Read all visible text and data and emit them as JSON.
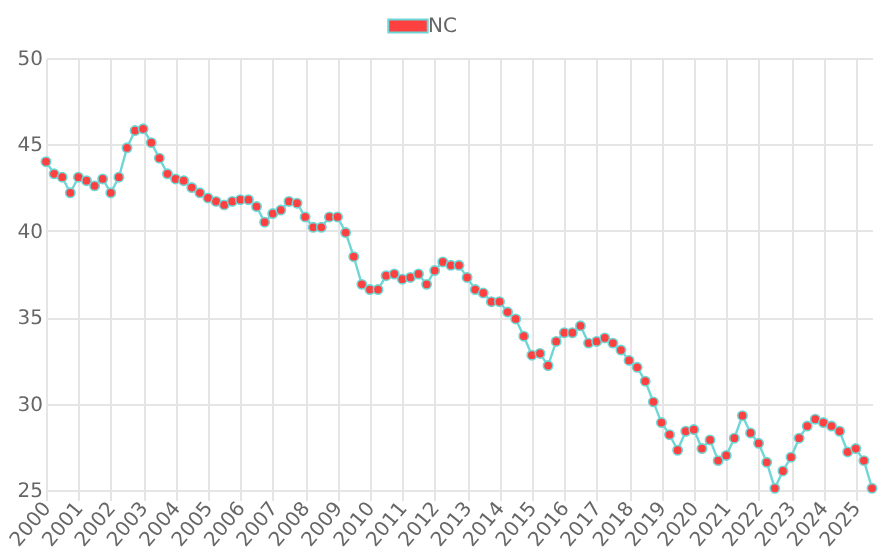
{
  "chart_data": {
    "type": "line",
    "categories": [
      "2000",
      null,
      null,
      null,
      "2001",
      null,
      null,
      null,
      "2002",
      null,
      null,
      null,
      "2003",
      null,
      null,
      null,
      "2004",
      null,
      null,
      null,
      "2005",
      null,
      null,
      null,
      "2006",
      null,
      null,
      null,
      "2007",
      null,
      null,
      null,
      "2008",
      null,
      null,
      null,
      "2009",
      null,
      null,
      null,
      "2010",
      null,
      null,
      null,
      "2011",
      null,
      null,
      null,
      "2012",
      null,
      null,
      null,
      "2013",
      null,
      null,
      null,
      "2014",
      null,
      null,
      null,
      "2015",
      null,
      null,
      null,
      "2016",
      null,
      null,
      null,
      "2017",
      null,
      null,
      null,
      "2018",
      null,
      null,
      null,
      "2019",
      null,
      null,
      null,
      "2020",
      null,
      null,
      null,
      "2021",
      null,
      null,
      null,
      "2022",
      null,
      null,
      null,
      "2023",
      null,
      null,
      null,
      "2024",
      null,
      null,
      null,
      "2025",
      null,
      null
    ],
    "series": [
      {
        "name": "NC",
        "color": "#ff4040",
        "values": [
          44.0,
          43.3,
          43.1,
          42.2,
          43.1,
          42.9,
          42.6,
          43.0,
          42.2,
          43.1,
          44.8,
          45.8,
          45.9,
          45.1,
          44.2,
          43.3,
          43.0,
          42.9,
          42.5,
          42.2,
          41.9,
          41.7,
          41.5,
          41.7,
          41.8,
          41.8,
          41.4,
          40.5,
          41.0,
          41.2,
          41.7,
          41.6,
          40.8,
          40.2,
          40.2,
          40.8,
          40.8,
          39.9,
          38.5,
          36.9,
          36.6,
          36.6,
          37.4,
          37.5,
          37.2,
          37.3,
          37.5,
          36.9,
          37.7,
          38.2,
          38.0,
          38.0,
          37.3,
          36.6,
          36.4,
          35.9,
          35.9,
          35.3,
          34.9,
          33.9,
          32.8,
          32.9,
          32.2,
          33.6,
          34.1,
          34.1,
          34.5,
          33.5,
          33.6,
          33.8,
          33.5,
          33.1,
          32.5,
          32.1,
          31.3,
          30.1,
          28.9,
          28.2,
          27.3,
          28.4,
          28.5,
          27.4,
          27.9,
          26.7,
          27.0,
          28.0,
          29.3,
          28.3,
          27.7,
          26.6,
          25.1,
          26.1,
          26.9,
          28.0,
          28.7,
          29.1,
          28.9,
          28.7,
          28.4,
          27.2,
          27.4,
          26.7,
          25.1
        ]
      }
    ],
    "ylim": [
      25,
      50
    ],
    "yticks": [
      25,
      30,
      35,
      40,
      45,
      50
    ],
    "grid": true,
    "legend": "top",
    "marker": "circle"
  }
}
